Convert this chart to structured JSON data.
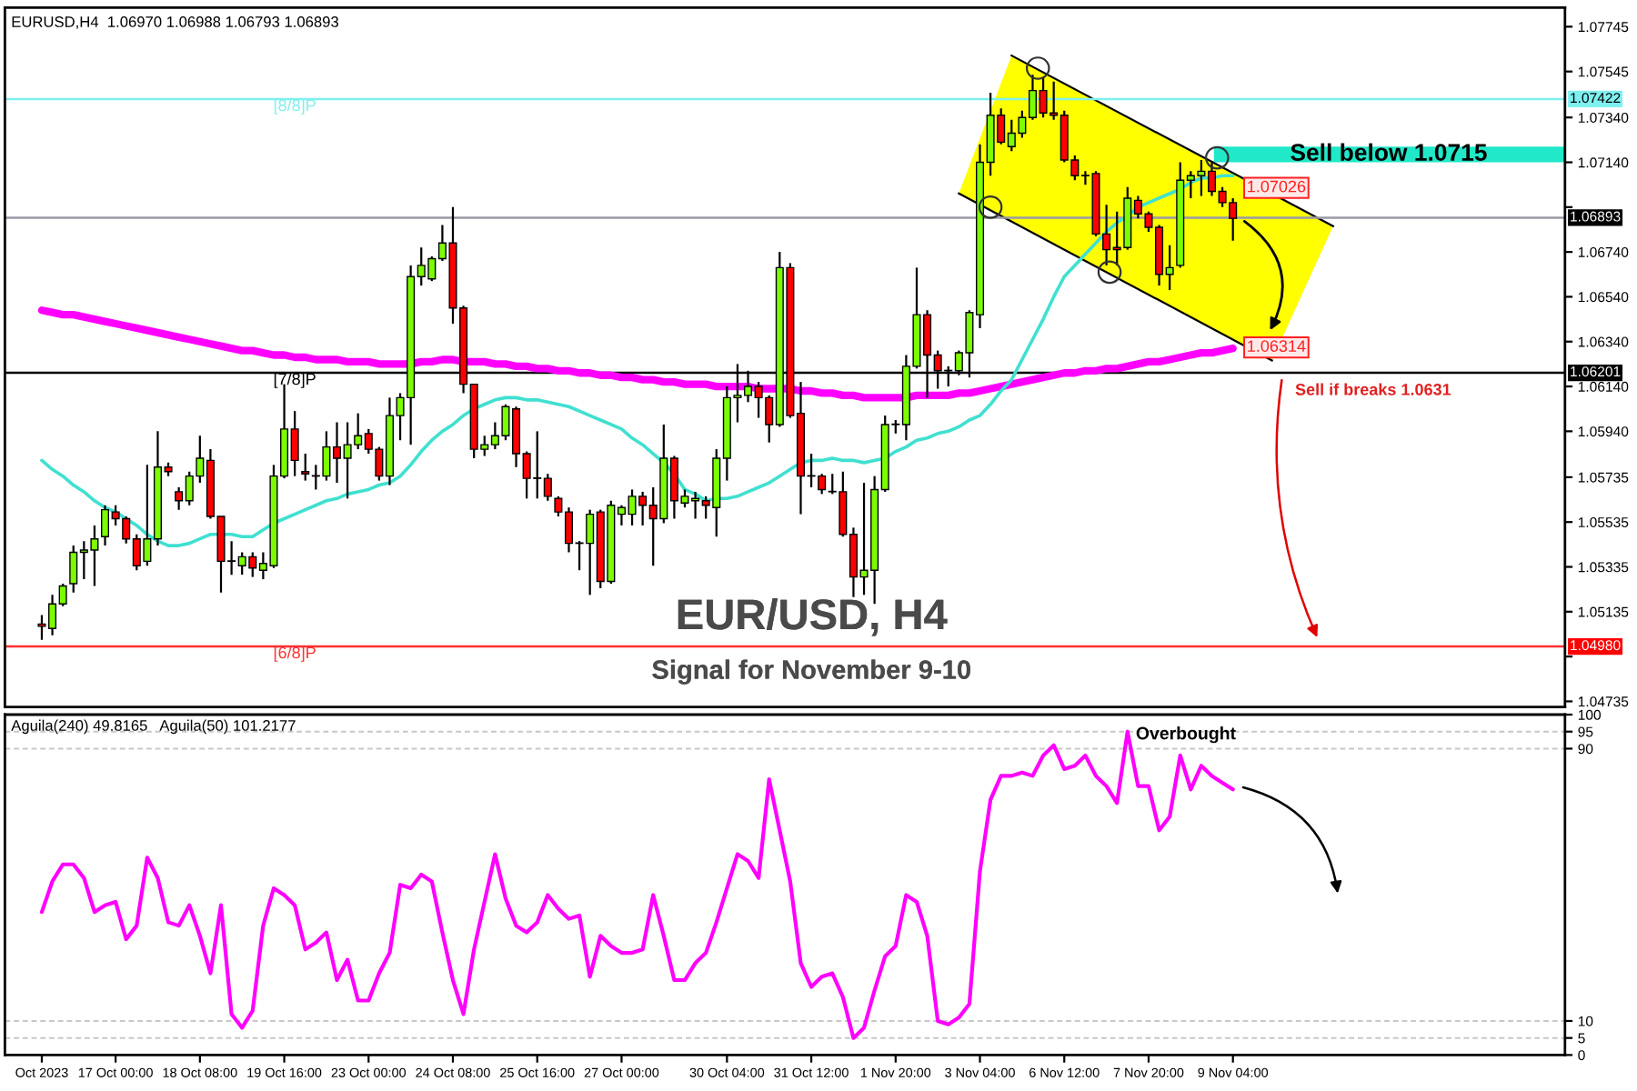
{
  "chart_data": [
    {
      "type": "candlestick",
      "title": "EUR/USD, H4",
      "subtitle": "Signal for November 9-10",
      "categories": [
        null,
        null,
        null,
        null,
        null,
        null,
        null,
        null,
        null,
        null,
        null,
        null,
        null,
        null,
        null,
        null,
        null,
        null,
        null,
        null,
        null,
        null,
        null,
        null,
        null,
        null,
        null,
        null,
        null,
        null,
        null,
        null,
        null,
        null,
        null,
        null,
        null,
        null,
        null,
        null,
        null,
        null,
        null,
        null,
        null,
        null,
        null,
        null,
        null,
        null,
        null,
        null,
        null,
        null,
        null,
        null,
        null,
        null,
        null,
        null,
        null,
        null,
        null,
        null,
        null,
        null,
        null,
        null,
        null,
        null,
        null,
        null,
        null,
        null,
        null,
        null,
        null,
        null,
        null,
        null,
        null,
        null,
        null,
        null,
        null,
        null,
        null,
        null,
        null,
        null,
        null,
        null,
        null,
        null,
        null,
        null,
        null,
        null,
        null,
        null,
        null,
        null,
        null,
        null,
        null,
        null,
        null,
        null,
        null,
        null,
        null,
        null,
        null,
        null,
        null,
        null,
        null,
        null,
        null,
        null,
        null,
        null,
        null,
        null,
        null,
        null,
        null,
        null,
        null,
        null,
        null,
        null,
        null,
        null,
        null,
        null,
        null,
        null,
        null,
        null,
        null,
        null,
        null,
        null,
        null
      ],
      "series": [
        {
          "type": "candlestick",
          "colors": [
            "#ff0000",
            "#7cfc00",
            "#7cfc00",
            "#7cfc00",
            "#7cfc00",
            "#7cfc00",
            "#7cfc00",
            "#ff0000",
            "#ff0000",
            "#ff0000",
            "#7cfc00",
            "#7cfc00",
            "#ff0000",
            "#ff0000",
            "#7cfc00",
            "#7cfc00",
            "#ff0000",
            "#ff0000",
            "#ff0000",
            "#7cfc00",
            "#ff0000",
            "#7cfc00",
            "#7cfc00",
            "#7cfc00",
            "#ff0000",
            "#ff0000",
            "#ff0000",
            "#7cfc00",
            "#ff0000",
            "#7cfc00",
            "#7cfc00",
            "#ff0000",
            "#ff0000",
            "#7cfc00",
            "#7cfc00",
            "#7cfc00",
            "#7cfc00",
            "#7cfc00",
            "#7cfc00",
            "#ff0000",
            "#ff0000",
            "#ff0000",
            "#7cfc00",
            "#7cfc00",
            "#7cfc00",
            "#ff0000",
            "#ff0000",
            "#ff0000",
            "#ff0000",
            "#ff0000",
            "#ff0000",
            "#ff0000",
            "#7cfc00",
            "#ff0000",
            "#7cfc00",
            "#7cfc00",
            "#7cfc00",
            "#ff0000",
            "#ff0000",
            "#7cfc00",
            "#ff0000",
            "#7cfc00",
            "#7cfc00",
            "#ff0000",
            "#7cfc00",
            "#7cfc00",
            "#7cfc00",
            "#7cfc00",
            "#ff0000",
            "#ff0000",
            "#7cfc00",
            "#ff0000",
            "#ff0000",
            "#ff0000",
            "#ff0000",
            "#ff0000",
            "#ff0000",
            "#ff0000",
            "#7cfc00",
            "#7cfc00",
            "#7cfc00",
            "#ff0000",
            "#7cfc00",
            "#7cfc00",
            "#ff0000",
            "#ff0000",
            "#ff0000",
            "#7cfc00",
            "#7cfc00",
            "#7cfc00",
            "#7cfc00",
            "#ff0000",
            "#7cfc00",
            "#7cfc00",
            "#7cfc00",
            "#ff0000",
            "#ff0000",
            "#ff0000",
            "#ff0000",
            "#ff0000",
            "#ff0000",
            "#ff0000",
            "#ff0000",
            "#7cfc00",
            "#ff0000",
            "#ff0000",
            "#ff0000",
            "#7cfc00",
            "#7cfc00",
            "#7cfc00",
            "#7cfc00",
            "#ff0000",
            "#ff0000",
            "#ff0000",
            null,
            null,
            null,
            null,
            null,
            null,
            null,
            null,
            null,
            null,
            null,
            null,
            null,
            null,
            null,
            null,
            null,
            null,
            null,
            null,
            null,
            null,
            null,
            null,
            null,
            null,
            null,
            null,
            null,
            null,
            null
          ],
          "ohlc": [
            [
              1.0508,
              1.0512,
              1.0501,
              1.0507
            ],
            [
              1.0506,
              1.0521,
              1.0503,
              1.0517
            ],
            [
              1.0517,
              1.0526,
              1.0516,
              1.0525
            ],
            [
              1.0526,
              1.0543,
              1.0522,
              1.054
            ],
            [
              1.054,
              1.0545,
              1.0528,
              1.0541
            ],
            [
              1.0541,
              1.0552,
              1.0525,
              1.0546
            ],
            [
              1.0547,
              1.0561,
              1.0543,
              1.0559
            ],
            [
              1.0558,
              1.0561,
              1.0552,
              1.0555
            ],
            [
              1.0555,
              1.0556,
              1.0544,
              1.0546
            ],
            [
              1.0546,
              1.0548,
              1.0532,
              1.0534
            ],
            [
              1.0536,
              1.0579,
              1.0534,
              1.0546
            ],
            [
              1.0546,
              1.0594,
              1.0543,
              1.0578
            ],
            [
              1.0578,
              1.058,
              1.0574,
              1.0576
            ],
            [
              1.0567,
              1.0569,
              1.0559,
              1.0563
            ],
            [
              1.0563,
              1.0576,
              1.0561,
              1.0574
            ],
            [
              1.0574,
              1.0592,
              1.0571,
              1.0582
            ],
            [
              1.0581,
              1.0586,
              1.0555,
              1.0556
            ],
            [
              1.0556,
              1.0556,
              1.0522,
              1.0536
            ],
            [
              1.0536,
              1.0545,
              1.053,
              1.0536
            ],
            [
              1.0534,
              1.054,
              1.053,
              1.0538
            ],
            [
              1.0538,
              1.054,
              1.0529,
              1.0533
            ],
            [
              1.0532,
              1.054,
              1.0528,
              1.0535
            ],
            [
              1.0534,
              1.0579,
              1.0533,
              1.0574
            ],
            [
              1.0574,
              1.0615,
              1.0573,
              1.0595
            ],
            [
              1.0595,
              1.0603,
              1.0574,
              1.0581
            ],
            [
              1.0576,
              1.0584,
              1.0572,
              1.0575
            ],
            [
              1.0574,
              1.0579,
              1.0568,
              1.0574
            ],
            [
              1.0574,
              1.0594,
              1.0572,
              1.0587
            ],
            [
              1.0587,
              1.0598,
              1.0571,
              1.0582
            ],
            [
              1.0582,
              1.0598,
              1.0564,
              1.0588
            ],
            [
              1.0588,
              1.0602,
              1.0586,
              1.0592
            ],
            [
              1.0593,
              1.0595,
              1.0584,
              1.0586
            ],
            [
              1.0586,
              1.0587,
              1.0572,
              1.0574
            ],
            [
              1.0574,
              1.0609,
              1.057,
              1.0601
            ],
            [
              1.0601,
              1.0611,
              1.059,
              1.0609
            ],
            [
              1.0609,
              1.0668,
              1.0588,
              1.0663
            ],
            [
              1.0663,
              1.0676,
              1.0659,
              1.0668
            ],
            [
              1.0662,
              1.0672,
              1.0661,
              1.0671
            ],
            [
              1.0671,
              1.0686,
              1.067,
              1.0678
            ],
            [
              1.0678,
              1.0694,
              1.0642,
              1.0649
            ],
            [
              1.0649,
              1.065,
              1.0611,
              1.0615
            ],
            [
              1.0615,
              1.0615,
              1.0582,
              1.0586
            ],
            [
              1.0586,
              1.0592,
              1.0583,
              1.0588
            ],
            [
              1.0588,
              1.0598,
              1.0586,
              1.0592
            ],
            [
              1.0592,
              1.0606,
              1.059,
              1.0605
            ],
            [
              1.0604,
              1.0605,
              1.0578,
              1.0584
            ],
            [
              1.0584,
              1.0585,
              1.0564,
              1.0573
            ],
            [
              1.0573,
              1.0594,
              1.0564,
              1.0573
            ],
            [
              1.0573,
              1.0575,
              1.0563,
              1.0565
            ],
            [
              1.0564,
              1.0565,
              1.0556,
              1.0558
            ],
            [
              1.0558,
              1.056,
              1.054,
              1.0544
            ],
            [
              1.0544,
              1.0545,
              1.0532,
              1.0544
            ],
            [
              1.0544,
              1.0559,
              1.0521,
              1.0557
            ],
            [
              1.0558,
              1.0559,
              1.0524,
              1.0527
            ],
            [
              1.0527,
              1.0563,
              1.0526,
              1.0561
            ],
            [
              1.0557,
              1.0561,
              1.0552,
              1.056
            ],
            [
              1.0557,
              1.0568,
              1.0552,
              1.0565
            ],
            [
              1.0565,
              1.0567,
              1.0552,
              1.0561
            ],
            [
              1.0561,
              1.0569,
              1.0534,
              1.0555
            ],
            [
              1.0555,
              1.0597,
              1.0553,
              1.0582
            ],
            [
              1.0582,
              1.0583,
              1.0555,
              1.0563
            ],
            [
              1.0562,
              1.0568,
              1.056,
              1.0565
            ],
            [
              1.0563,
              1.0567,
              1.0555,
              1.0564
            ],
            [
              1.0563,
              1.0565,
              1.0555,
              1.0561
            ],
            [
              1.056,
              1.0586,
              1.0547,
              1.0582
            ],
            [
              1.0582,
              1.0614,
              1.0572,
              1.0609
            ],
            [
              1.0609,
              1.0624,
              1.0598,
              1.061
            ],
            [
              1.061,
              1.0621,
              1.0607,
              1.0614
            ],
            [
              1.0614,
              1.0616,
              1.06,
              1.0609
            ],
            [
              1.0609,
              1.061,
              1.0589,
              1.0597
            ],
            [
              1.0597,
              1.0674,
              1.0596,
              1.0667
            ],
            [
              1.0667,
              1.0669,
              1.06,
              1.0601
            ],
            [
              1.0602,
              1.0616,
              1.0557,
              1.0574
            ],
            [
              1.0574,
              1.0584,
              1.0569,
              1.0574
            ],
            [
              1.0574,
              1.0575,
              1.0566,
              1.0568
            ],
            [
              1.0567,
              1.0575,
              1.0566,
              1.0567
            ],
            [
              1.0567,
              1.0576,
              1.0547,
              1.0548
            ],
            [
              1.0548,
              1.0551,
              1.052,
              1.0529
            ],
            [
              1.0529,
              1.0571,
              1.0521,
              1.0532
            ],
            [
              1.0532,
              1.0574,
              1.0517,
              1.0568
            ],
            [
              1.0568,
              1.0601,
              1.0567,
              1.0597
            ],
            [
              1.0597,
              1.0599,
              1.0593,
              1.0597
            ],
            [
              1.0597,
              1.0628,
              1.059,
              1.0623
            ],
            [
              1.0623,
              1.0667,
              1.0622,
              1.0646
            ],
            [
              1.0646,
              1.0648,
              1.0609,
              1.0628
            ],
            [
              1.0628,
              1.063,
              1.0613,
              1.0621
            ],
            [
              1.0621,
              1.0623,
              1.0614,
              1.0621
            ],
            [
              1.0621,
              1.063,
              1.0619,
              1.0629
            ],
            [
              1.0629,
              1.0648,
              1.0618,
              1.0647
            ],
            [
              1.0646,
              1.0722,
              1.064,
              1.0714
            ],
            [
              1.0714,
              1.0745,
              1.0708,
              1.0735
            ],
            [
              1.0735,
              1.0738,
              1.0722,
              1.0723
            ],
            [
              1.0721,
              1.0733,
              1.0719,
              1.0727
            ],
            [
              1.0727,
              1.0737,
              1.0725,
              1.0734
            ],
            [
              1.0734,
              1.0753,
              1.0733,
              1.0746
            ],
            [
              1.0746,
              1.0752,
              1.0734,
              1.0736
            ],
            [
              1.0736,
              1.075,
              1.0733,
              1.0735
            ],
            [
              1.0735,
              1.0737,
              1.0714,
              1.0715
            ],
            [
              1.0715,
              1.0717,
              1.0706,
              1.0708
            ],
            [
              1.0708,
              1.071,
              1.0704,
              1.0708
            ],
            [
              1.0709,
              1.071,
              1.0681,
              1.0682
            ],
            [
              1.0682,
              1.0695,
              1.0668,
              1.0675
            ],
            [
              1.0676,
              1.0692,
              1.0668,
              1.0675
            ],
            [
              1.0676,
              1.0703,
              1.0675,
              1.0698
            ],
            [
              1.0697,
              1.0699,
              1.0689,
              1.0691
            ],
            [
              1.0691,
              1.0692,
              1.0683,
              1.0685
            ],
            [
              1.0685,
              1.0686,
              1.0659,
              1.0664
            ],
            [
              1.0664,
              1.0677,
              1.0657,
              1.0667
            ],
            [
              1.0668,
              1.0714,
              1.0667,
              1.0706
            ],
            [
              1.0706,
              1.071,
              1.0698,
              1.0708
            ],
            [
              1.0708,
              1.0715,
              1.0699,
              1.071
            ],
            [
              1.071,
              1.0714,
              1.0699,
              1.0701
            ],
            [
              1.0701,
              1.0703,
              1.0694,
              1.0696
            ],
            [
              1.0696,
              1.0698,
              1.0679,
              1.0689
            ],
            null,
            null,
            null,
            null,
            null,
            null,
            null,
            null,
            null,
            null,
            null,
            null,
            null,
            null,
            null,
            null,
            null,
            null,
            null,
            null,
            null,
            null,
            null,
            null,
            null,
            null,
            null,
            null,
            null,
            null,
            null
          ]
        },
        {
          "type": "line",
          "color": "#ff00ff",
          "values": [
            1.0648,
            1.0647,
            1.0646,
            1.0646,
            1.0645,
            1.0644,
            1.0643,
            1.0642,
            1.0641,
            1.064,
            1.0639,
            1.0638,
            1.0637,
            1.0636,
            1.0635,
            1.0634,
            1.0633,
            1.0632,
            1.0631,
            1.063,
            1.063,
            1.0629,
            1.0628,
            1.0628,
            1.0627,
            1.0627,
            1.0626,
            1.0626,
            1.0626,
            1.0625,
            1.0625,
            1.0625,
            1.0624,
            1.0624,
            1.0624,
            1.0624,
            1.0625,
            1.0625,
            1.0626,
            1.0626,
            1.0625,
            1.0625,
            1.0625,
            1.0624,
            1.0624,
            1.0623,
            1.0623,
            1.0622,
            1.0622,
            1.0621,
            1.0621,
            1.062,
            1.062,
            1.0619,
            1.0619,
            1.0618,
            1.0618,
            1.0617,
            1.0617,
            1.0616,
            1.0616,
            1.0615,
            1.0615,
            1.0615,
            1.0614,
            1.0614,
            1.0614,
            1.0614,
            1.0613,
            1.0613,
            1.0613,
            1.0613,
            1.0612,
            1.0612,
            1.0611,
            1.0611,
            1.061,
            1.061,
            1.0609,
            1.0609,
            1.0609,
            1.0609,
            1.0609,
            1.061,
            1.061,
            1.061,
            1.061,
            1.0611,
            1.0611,
            1.0612,
            1.0613,
            1.0614,
            1.0615,
            1.0616,
            1.0617,
            1.0618,
            1.0619,
            1.062,
            1.062,
            1.0621,
            1.0621,
            1.0622,
            1.0622,
            1.0623,
            1.0624,
            1.0625,
            1.0625,
            1.0626,
            1.0627,
            1.0628,
            1.0629,
            1.0629,
            1.063,
            1.0631,
            null,
            null,
            null,
            null,
            null,
            null,
            null,
            null,
            null,
            null,
            null,
            null,
            null,
            null,
            null,
            null,
            null,
            null,
            null,
            null,
            null,
            null,
            null,
            null,
            null,
            null,
            null,
            null,
            null,
            null,
            null
          ]
        },
        {
          "type": "line",
          "color": "#40e0d0",
          "values": [
            1.0581,
            1.0577,
            1.0574,
            1.057,
            1.0567,
            1.0563,
            1.056,
            1.0558,
            1.0555,
            1.0552,
            1.0548,
            1.0545,
            1.0543,
            1.0543,
            1.0544,
            1.0546,
            1.0548,
            1.0548,
            1.0548,
            1.0547,
            1.0547,
            1.055,
            1.0553,
            1.0555,
            1.0557,
            1.0559,
            1.0561,
            1.0563,
            1.0564,
            1.0566,
            1.0567,
            1.0568,
            1.057,
            1.0571,
            1.0574,
            1.0579,
            1.0585,
            1.059,
            1.0594,
            1.0597,
            1.0601,
            1.0604,
            1.0606,
            1.0608,
            1.0609,
            1.0609,
            1.0608,
            1.0608,
            1.0607,
            1.0606,
            1.0605,
            1.0603,
            1.0601,
            1.0599,
            1.0597,
            1.0595,
            1.0591,
            1.0588,
            1.0584,
            1.058,
            1.0575,
            1.0568,
            1.0566,
            1.0563,
            1.0564,
            1.0564,
            1.0565,
            1.0567,
            1.0569,
            1.0571,
            1.0574,
            1.0577,
            1.058,
            1.0581,
            1.0581,
            1.0582,
            1.0581,
            1.0581,
            1.058,
            1.0581,
            1.0582,
            1.0585,
            1.0587,
            1.059,
            1.0591,
            1.0593,
            1.0594,
            1.0596,
            1.0599,
            1.0601,
            1.0606,
            1.0612,
            1.0617,
            1.0626,
            1.0635,
            1.0644,
            1.0654,
            1.0663,
            1.0668,
            1.0673,
            1.0678,
            1.0683,
            1.0687,
            1.069,
            1.0694,
            1.0696,
            1.0698,
            1.07,
            1.0702,
            1.0705,
            1.0707,
            1.0707,
            1.0708,
            1.0708,
            null,
            null,
            null,
            null,
            null,
            null,
            null,
            null,
            null,
            null,
            null,
            null,
            null,
            null,
            null,
            null,
            null,
            null,
            null,
            null,
            null,
            null,
            null,
            null,
            null,
            null,
            null,
            null,
            null,
            null,
            null
          ]
        }
      ],
      "ylim": [
        1.0471,
        1.0783
      ],
      "yticks": [
        1.04735,
        {
          "value": 1.04935,
          "label": null
        },
        1.05135,
        1.05335,
        1.05535,
        1.05735,
        {
          "value": 1.0594,
          "label": "1.05940"
        },
        {
          "value": 1.0614,
          "label": "1.06140"
        },
        {
          "value": 1.0634,
          "label": "1.06340"
        },
        {
          "value": 1.0654,
          "label": "1.06540"
        },
        {
          "value": 1.0674,
          "label": "1.06740"
        },
        {
          "value": 1.0694,
          "label": null
        },
        {
          "value": 1.0714,
          "label": "1.07140"
        },
        {
          "value": 1.0734,
          "label": "1.07340"
        },
        1.07545,
        1.07745
      ],
      "tick_labels": "y",
      "ref_lines": [
        {
          "axis": "y",
          "value": 1.07422,
          "label": "[8/8]P",
          "color": "#7ff0f0"
        },
        {
          "axis": "y",
          "value": 1.06893,
          "color": "#9a9aa6"
        },
        {
          "axis": "y",
          "value": 1.06201,
          "label": "[7/8]P",
          "color": "#000000"
        },
        {
          "axis": "y",
          "value": 1.0498,
          "label": "[6/8]P",
          "color": "#ff3030"
        }
      ],
      "bands": [
        {
          "axis": "y",
          "from": 1.0714,
          "to": 1.0721,
          "label": "Sell below 1.0715",
          "color": "#20e8c8"
        }
      ],
      "annotations": [
        "EURUSD,H4  1.06970 1.06988 1.06793 1.06893",
        {
          "text": "1.07026",
          "y": 1.07026
        },
        {
          "text": "1.06314",
          "y": 1.06314
        },
        "Sell if breaks 1.0631",
        {
          "text": "1.07422",
          "y": 1.07422
        },
        {
          "text": "1.06893",
          "y": 1.06893
        },
        {
          "text": "1.06201",
          "y": 1.06201
        },
        {
          "text": "1.04980",
          "y": 1.0498
        }
      ]
    },
    {
      "type": "line",
      "categories": [
        "Oct 2023",
        null,
        null,
        null,
        null,
        null,
        null,
        "17 Oct 00:00",
        null,
        null,
        null,
        null,
        null,
        null,
        null,
        "18 Oct 08:00",
        null,
        null,
        null,
        null,
        null,
        null,
        null,
        "19 Oct 16:00",
        null,
        null,
        null,
        null,
        null,
        null,
        null,
        "23 Oct 00:00",
        null,
        null,
        null,
        null,
        null,
        null,
        null,
        "24 Oct 08:00",
        null,
        null,
        null,
        null,
        null,
        null,
        null,
        "25 Oct 16:00",
        null,
        null,
        null,
        null,
        null,
        null,
        null,
        "27 Oct 00:00",
        null,
        null,
        null,
        null,
        null,
        null,
        null,
        null,
        null,
        "30 Oct 04:00",
        null,
        null,
        null,
        null,
        null,
        null,
        null,
        "31 Oct 12:00",
        null,
        null,
        null,
        null,
        null,
        null,
        null,
        "1 Nov 20:00",
        null,
        null,
        null,
        null,
        null,
        null,
        null,
        "3 Nov 04:00",
        null,
        null,
        null,
        null,
        null,
        null,
        null,
        "6 Nov 12:00",
        null,
        null,
        null,
        null,
        null,
        null,
        null,
        "7 Nov 20:00",
        null,
        null,
        null,
        null,
        null,
        null,
        null,
        "9 Nov 04:00",
        null,
        null,
        null,
        null,
        null,
        null,
        null,
        null,
        null,
        null,
        null,
        null,
        null,
        null,
        null,
        null,
        null,
        null,
        null,
        null,
        null,
        null,
        null,
        null,
        null,
        null,
        null,
        null,
        null,
        null,
        null
      ],
      "series": [
        {
          "color": "#ff00ff",
          "values": [
            42,
            51,
            56,
            56,
            52,
            42,
            44,
            45,
            34,
            38,
            58,
            52,
            39,
            38,
            44,
            35,
            24,
            44,
            12,
            8,
            13,
            38,
            49,
            47,
            44,
            31,
            33,
            36,
            22,
            28,
            16,
            16,
            24,
            30,
            50,
            49,
            53,
            51,
            36,
            22,
            12,
            31,
            45,
            59,
            46,
            38,
            36,
            39,
            47,
            43,
            40,
            41,
            23,
            35,
            32,
            30,
            30,
            31,
            47,
            35,
            22,
            22,
            27,
            30,
            39,
            49,
            59,
            57,
            52,
            81,
            66,
            51,
            27,
            20,
            23,
            24,
            17,
            5,
            8,
            19,
            29,
            32,
            47,
            45,
            35,
            10,
            9,
            11,
            15,
            54,
            75,
            82,
            82,
            83,
            82,
            88,
            91,
            84,
            85,
            88,
            82,
            79,
            74,
            95,
            79,
            79,
            66,
            70,
            88,
            78,
            85,
            82,
            80,
            78,
            null,
            null,
            null,
            null,
            null,
            null,
            null,
            null,
            null,
            null,
            null,
            null,
            null,
            null,
            null,
            null,
            null,
            null,
            null,
            null,
            null,
            null,
            null,
            null,
            null,
            null,
            null,
            null,
            null,
            null,
            null
          ]
        }
      ],
      "ylim": [
        0,
        100
      ],
      "yticks": [
        0,
        5,
        10,
        90,
        95,
        100
      ],
      "ref_lines": [
        {
          "axis": "y",
          "value": 5,
          "color": "#c8c8c8",
          "line_style": "dashed"
        },
        {
          "axis": "y",
          "value": 10,
          "color": "#c8c8c8",
          "line_style": "dashed"
        },
        {
          "axis": "y",
          "value": 90,
          "color": "#c8c8c8",
          "line_style": "dashed"
        },
        {
          "axis": "y",
          "value": 95,
          "color": "#c8c8c8",
          "line_style": "dashed"
        }
      ],
      "annotations": [
        "Aguila(240) 49.8165   Aguila(50) 101.2177",
        "Overbought"
      ]
    }
  ]
}
